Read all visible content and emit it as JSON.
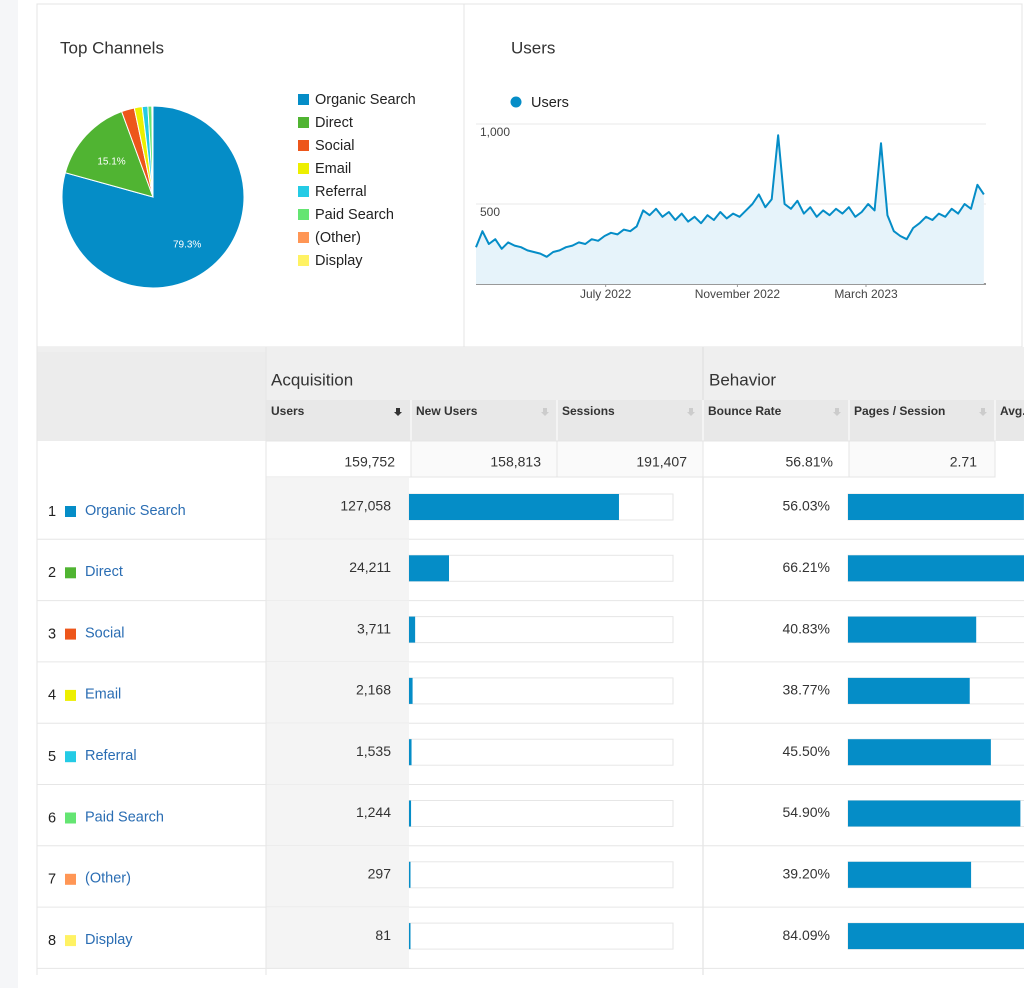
{
  "chart_data": [
    {
      "type": "pie",
      "title": "Top Channels",
      "categories": [
        "Organic Search",
        "Direct",
        "Social",
        "Email",
        "Referral",
        "Paid Search",
        "(Other)",
        "Display"
      ],
      "values": [
        79.3,
        15.1,
        2.3,
        1.4,
        1.0,
        0.7,
        0.15,
        0.05
      ],
      "value_labels": [
        "79.3%",
        "15.1%",
        null,
        null,
        null,
        null,
        null,
        null
      ],
      "colors": [
        "#058dc7",
        "#50b432",
        "#ed561b",
        "#edef00",
        "#24cbe5",
        "#64e572",
        "#ff9655",
        "#fff263"
      ]
    },
    {
      "type": "line",
      "title": "Users",
      "x": [
        0,
        6,
        12,
        18,
        24,
        30,
        36,
        42,
        48,
        54,
        60,
        66,
        72,
        78,
        84,
        90,
        96,
        102,
        108,
        114,
        120,
        126,
        132,
        138,
        144,
        150,
        156,
        162,
        168,
        174,
        180,
        186,
        192,
        198,
        204,
        210,
        216,
        222,
        228,
        234,
        240,
        246,
        252,
        258,
        264,
        270,
        276,
        282,
        288,
        294,
        300,
        306,
        312,
        318,
        324,
        330,
        336,
        342,
        348,
        354,
        360,
        366,
        372,
        378,
        384,
        390,
        396,
        402,
        408,
        414,
        420,
        426,
        432,
        438,
        444,
        450,
        456,
        462,
        468,
        474
      ],
      "series": [
        {
          "name": "Users",
          "color": "#058dc7",
          "values": [
            230,
            330,
            250,
            280,
            220,
            260,
            240,
            230,
            210,
            200,
            190,
            170,
            200,
            210,
            230,
            240,
            260,
            250,
            280,
            270,
            300,
            320,
            310,
            340,
            330,
            360,
            460,
            430,
            470,
            420,
            450,
            400,
            440,
            390,
            420,
            380,
            430,
            400,
            450,
            410,
            440,
            420,
            460,
            500,
            560,
            480,
            530,
            930,
            500,
            470,
            520,
            440,
            480,
            420,
            460,
            430,
            470,
            440,
            480,
            420,
            450,
            500,
            460,
            880,
            430,
            330,
            300,
            280,
            350,
            380,
            420,
            400,
            440,
            420,
            470,
            440,
            500,
            470,
            620,
            560
          ]
        }
      ],
      "xlim": [
        0,
        476
      ],
      "xticks": [
        {
          "value": 121,
          "label": "July 2022"
        },
        {
          "value": 244,
          "label": "November 2022"
        },
        {
          "value": 364,
          "label": "March 2023"
        }
      ],
      "ylim": [
        0,
        1000
      ],
      "yticks": [
        500,
        {
          "value": 1000,
          "label": "1,000"
        }
      ],
      "grid": true
    }
  ],
  "table": {
    "groups": [
      "Acquisition",
      "Behavior"
    ],
    "columns": [
      "Users",
      "New Users",
      "Sessions",
      "Bounce Rate",
      "Pages / Session",
      "Avg. Session Duration"
    ],
    "totals": {
      "users": {
        "value": 159752,
        "label": "159,752"
      },
      "new_users": "158,813",
      "sessions": "191,407",
      "bounce_rate": "56.81%",
      "pages_per_session": "2.71"
    },
    "rows": [
      {
        "rank": "1",
        "channel": "Organic Search",
        "users": {
          "value": 127058,
          "label": "127,058"
        },
        "bounce_rate": {
          "value": 56.03,
          "label": "56.03%"
        }
      },
      {
        "rank": "2",
        "channel": "Direct",
        "users": {
          "value": 24211,
          "label": "24,211"
        },
        "bounce_rate": {
          "value": 66.21,
          "label": "66.21%"
        }
      },
      {
        "rank": "3",
        "channel": "Social",
        "users": {
          "value": 3711,
          "label": "3,711"
        },
        "bounce_rate": {
          "value": 40.83,
          "label": "40.83%"
        }
      },
      {
        "rank": "4",
        "channel": "Email",
        "users": {
          "value": 2168,
          "label": "2,168"
        },
        "bounce_rate": {
          "value": 38.77,
          "label": "38.77%"
        }
      },
      {
        "rank": "5",
        "channel": "Referral",
        "users": {
          "value": 1535,
          "label": "1,535"
        },
        "bounce_rate": {
          "value": 45.5,
          "label": "45.50%"
        }
      },
      {
        "rank": "6",
        "channel": "Paid Search",
        "users": {
          "value": 1244,
          "label": "1,244"
        },
        "bounce_rate": {
          "value": 54.9,
          "label": "54.90%"
        }
      },
      {
        "rank": "7",
        "channel": "(Other)",
        "users": {
          "value": 297,
          "label": "297"
        },
        "bounce_rate": {
          "value": 39.2,
          "label": "39.20%"
        }
      },
      {
        "rank": "8",
        "channel": "Display",
        "users": {
          "value": 81,
          "label": "81"
        },
        "bounce_rate": {
          "value": 84.09,
          "label": "84.09%"
        }
      }
    ]
  }
}
